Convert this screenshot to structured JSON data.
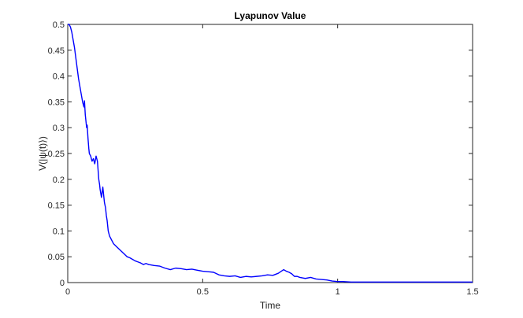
{
  "chart_data": {
    "type": "line",
    "title": "Lyapunov Value",
    "xlabel": "Time",
    "ylabel": "V(|ψ(t)⟩)",
    "xlim": [
      0,
      1.5
    ],
    "ylim": [
      0,
      0.5
    ],
    "x_ticks": [
      "0",
      "0.5",
      "1",
      "1.5"
    ],
    "y_ticks": [
      "0",
      "0.05",
      "0.1",
      "0.15",
      "0.2",
      "0.25",
      "0.3",
      "0.35",
      "0.4",
      "0.45",
      "0.5"
    ],
    "grid": false,
    "legend": "none",
    "series": [
      {
        "color": "#0000ff",
        "x": [
          0,
          0.005,
          0.01,
          0.015,
          0.02,
          0.025,
          0.03,
          0.035,
          0.04,
          0.045,
          0.05,
          0.055,
          0.06,
          0.062,
          0.065,
          0.068,
          0.07,
          0.072,
          0.075,
          0.078,
          0.08,
          0.085,
          0.09,
          0.095,
          0.1,
          0.105,
          0.11,
          0.115,
          0.118,
          0.12,
          0.125,
          0.13,
          0.133,
          0.136,
          0.14,
          0.143,
          0.146,
          0.15,
          0.155,
          0.16,
          0.165,
          0.17,
          0.18,
          0.19,
          0.2,
          0.21,
          0.22,
          0.23,
          0.24,
          0.25,
          0.26,
          0.27,
          0.28,
          0.29,
          0.3,
          0.32,
          0.34,
          0.36,
          0.38,
          0.4,
          0.42,
          0.44,
          0.46,
          0.48,
          0.5,
          0.52,
          0.54,
          0.56,
          0.58,
          0.6,
          0.62,
          0.64,
          0.66,
          0.68,
          0.7,
          0.72,
          0.74,
          0.76,
          0.78,
          0.8,
          0.81,
          0.82,
          0.83,
          0.84,
          0.85,
          0.86,
          0.87,
          0.88,
          0.9,
          0.92,
          0.94,
          0.96,
          0.98,
          1.0,
          1.02,
          1.05,
          1.1,
          1.15,
          1.2,
          1.25,
          1.3,
          1.35,
          1.4,
          1.45,
          1.5
        ],
        "y": [
          0.5,
          0.5,
          0.495,
          0.485,
          0.47,
          0.455,
          0.435,
          0.415,
          0.395,
          0.38,
          0.365,
          0.35,
          0.34,
          0.352,
          0.325,
          0.31,
          0.3,
          0.305,
          0.28,
          0.26,
          0.25,
          0.245,
          0.235,
          0.24,
          0.23,
          0.245,
          0.235,
          0.2,
          0.19,
          0.18,
          0.165,
          0.185,
          0.17,
          0.155,
          0.145,
          0.13,
          0.12,
          0.1,
          0.09,
          0.085,
          0.08,
          0.075,
          0.07,
          0.065,
          0.06,
          0.055,
          0.05,
          0.048,
          0.045,
          0.042,
          0.04,
          0.038,
          0.035,
          0.037,
          0.035,
          0.033,
          0.032,
          0.028,
          0.025,
          0.028,
          0.027,
          0.025,
          0.026,
          0.024,
          0.022,
          0.021,
          0.02,
          0.015,
          0.013,
          0.012,
          0.013,
          0.01,
          0.012,
          0.011,
          0.012,
          0.013,
          0.015,
          0.014,
          0.018,
          0.025,
          0.022,
          0.02,
          0.017,
          0.012,
          0.012,
          0.01,
          0.009,
          0.008,
          0.01,
          0.007,
          0.006,
          0.005,
          0.003,
          0.002,
          0.002,
          0.001,
          0.001,
          0.001,
          0.001,
          0.001,
          0.001,
          0.001,
          0.001,
          0.001,
          0.001
        ]
      }
    ]
  }
}
